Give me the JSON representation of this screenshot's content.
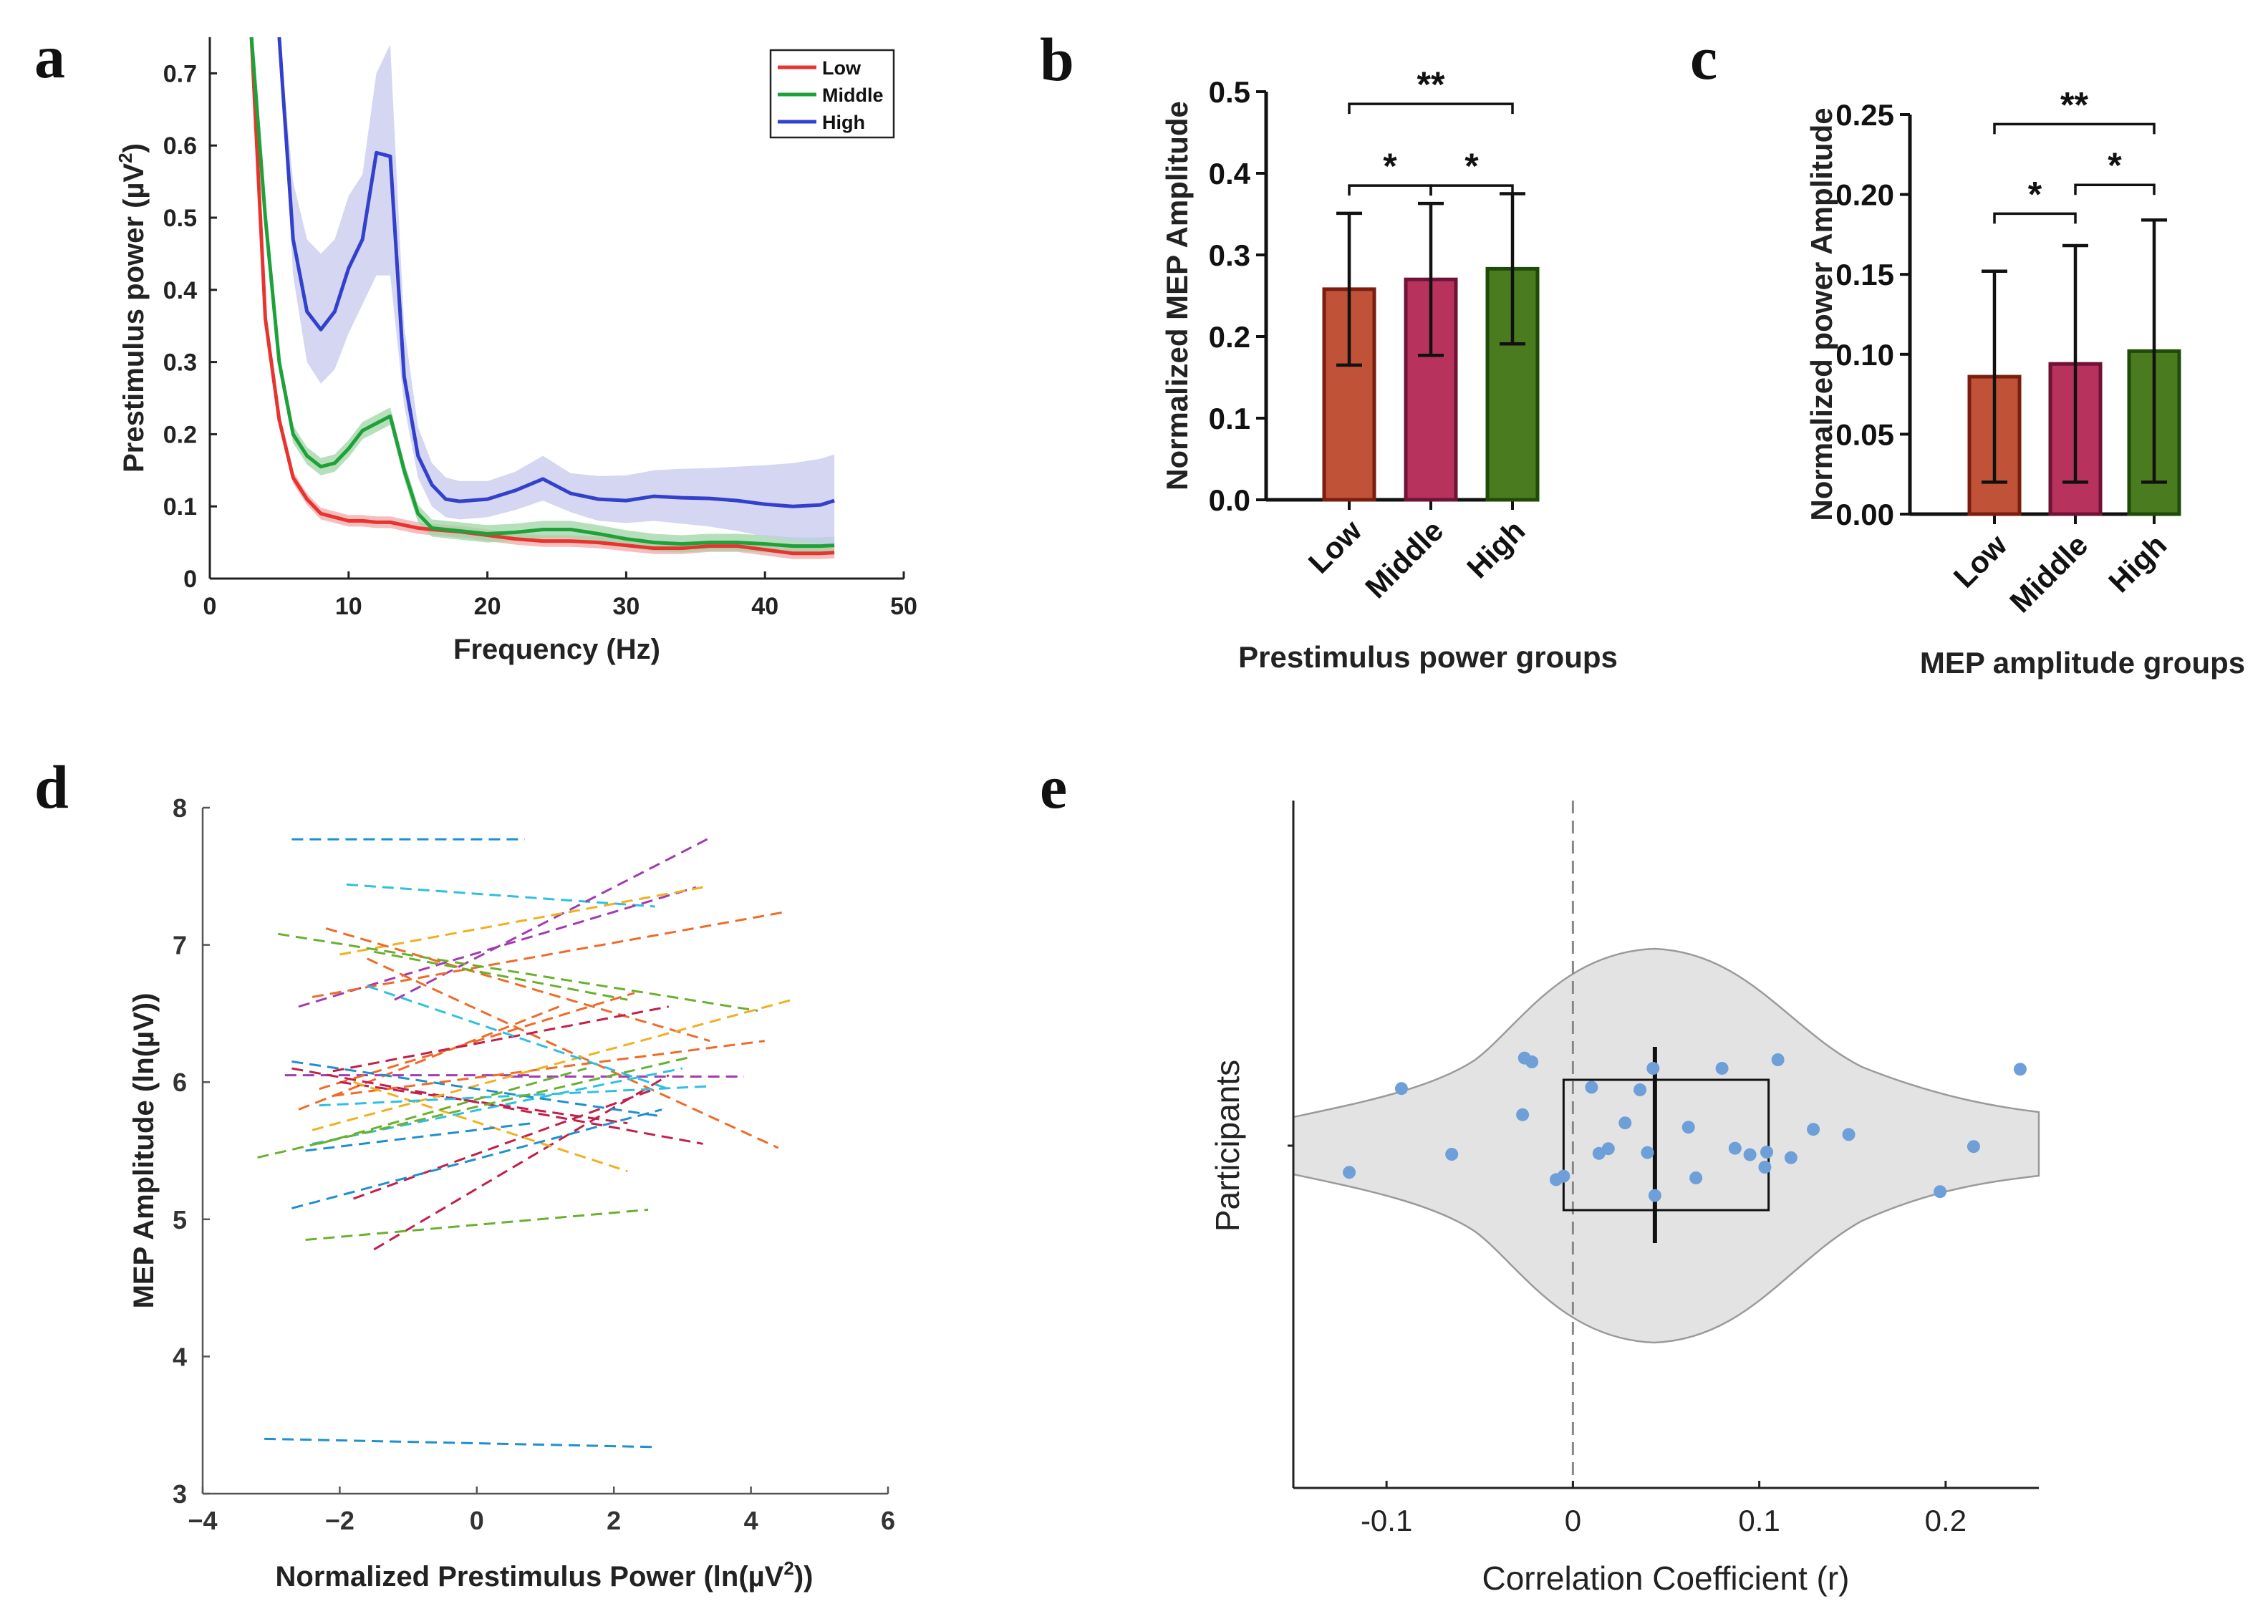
{
  "panels": {
    "a": "a",
    "b": "b",
    "c": "c",
    "d": "d",
    "e": "e"
  },
  "chart_data": [
    {
      "id": "a",
      "type": "line",
      "xlabel": "Frequency (Hz)",
      "ylabel": "Prestimulus power (µV²)",
      "ylabel_base": "Prestimulus power (µV",
      "ylabel_sup": "2",
      "ylabel_end": ")",
      "xlim": [
        0,
        50
      ],
      "ylim": [
        0,
        0.75
      ],
      "xticks": [
        0,
        10,
        20,
        30,
        40,
        50
      ],
      "yticks": [
        0,
        0.1,
        0.2,
        0.3,
        0.4,
        0.5,
        0.6,
        0.7
      ],
      "ytick_labels": [
        "0",
        "0.1",
        "0.2",
        "0.3",
        "0.4",
        "0.5",
        "0.6",
        "0.7"
      ],
      "legend_position": "top-right",
      "series": [
        {
          "name": "Low",
          "color": "#e8342f",
          "band_color": "#f2a8a8",
          "x": [
            3,
            4,
            5,
            6,
            7,
            8,
            9,
            10,
            11,
            12,
            13,
            14,
            15,
            16,
            18,
            20,
            22,
            24,
            26,
            28,
            30,
            32,
            34,
            36,
            38,
            40,
            42,
            44,
            45
          ],
          "y": [
            0.75,
            0.36,
            0.22,
            0.14,
            0.11,
            0.09,
            0.085,
            0.08,
            0.08,
            0.078,
            0.078,
            0.074,
            0.07,
            0.068,
            0.065,
            0.06,
            0.055,
            0.052,
            0.052,
            0.05,
            0.046,
            0.042,
            0.042,
            0.045,
            0.045,
            0.04,
            0.035,
            0.035,
            0.036
          ],
          "band": 0.008
        },
        {
          "name": "Middle",
          "color": "#1fa13a",
          "band_color": "#9fd4a5",
          "x": [
            3,
            4,
            5,
            6,
            7,
            8,
            9,
            10,
            11,
            12,
            13,
            14,
            15,
            16,
            18,
            20,
            22,
            24,
            26,
            28,
            30,
            32,
            34,
            36,
            38,
            40,
            42,
            44,
            45
          ],
          "y": [
            0.75,
            0.5,
            0.3,
            0.2,
            0.17,
            0.155,
            0.16,
            0.18,
            0.205,
            0.215,
            0.225,
            0.15,
            0.09,
            0.07,
            0.066,
            0.062,
            0.064,
            0.068,
            0.068,
            0.062,
            0.055,
            0.05,
            0.048,
            0.05,
            0.05,
            0.048,
            0.045,
            0.045,
            0.046
          ],
          "band": 0.012
        },
        {
          "name": "High",
          "color": "#3340cc",
          "band_color": "#c5c8ee",
          "x": [
            5,
            6,
            7,
            8,
            9,
            10,
            11,
            12,
            13,
            14,
            15,
            16,
            17,
            18,
            20,
            22,
            24,
            26,
            28,
            30,
            32,
            34,
            36,
            38,
            40,
            42,
            44,
            45
          ],
          "y": [
            0.75,
            0.47,
            0.37,
            0.345,
            0.37,
            0.43,
            0.47,
            0.59,
            0.585,
            0.28,
            0.17,
            0.13,
            0.11,
            0.107,
            0.11,
            0.122,
            0.138,
            0.118,
            0.11,
            0.108,
            0.114,
            0.112,
            0.111,
            0.108,
            0.103,
            0.1,
            0.102,
            0.108
          ],
          "band_lo": [
            0.75,
            0.42,
            0.3,
            0.27,
            0.29,
            0.34,
            0.38,
            0.42,
            0.42,
            0.24,
            0.14,
            0.1,
            0.085,
            0.082,
            0.085,
            0.095,
            0.108,
            0.092,
            0.08,
            0.077,
            0.08,
            0.076,
            0.072,
            0.066,
            0.058,
            0.052,
            0.048,
            0.046
          ],
          "band_hi": [
            0.75,
            0.55,
            0.47,
            0.45,
            0.47,
            0.53,
            0.56,
            0.7,
            0.74,
            0.35,
            0.21,
            0.16,
            0.14,
            0.135,
            0.135,
            0.148,
            0.17,
            0.146,
            0.142,
            0.143,
            0.15,
            0.152,
            0.153,
            0.155,
            0.157,
            0.16,
            0.166,
            0.172
          ]
        }
      ]
    },
    {
      "id": "b",
      "type": "bar",
      "xlabel": "Prestimulus  power groups",
      "ylabel": "Normalized MEP Amplitude",
      "categories": [
        "Low",
        "Middle",
        "High"
      ],
      "values": [
        0.258,
        0.27,
        0.283
      ],
      "errors": [
        0.093,
        0.093,
        0.092
      ],
      "ylim": [
        0,
        0.5
      ],
      "yticks": [
        0,
        0.1,
        0.2,
        0.3,
        0.4,
        0.5
      ],
      "ytick_labels": [
        "0.0",
        "0.1",
        "0.2",
        "0.3",
        "0.4",
        "0.5"
      ],
      "bar_colors": [
        "#c05238",
        "#b8325e",
        "#4a7b1e"
      ],
      "bar_edges": [
        "#7a1e10",
        "#6e1236",
        "#1f4a08"
      ],
      "significance": [
        {
          "from": 0,
          "to": 1,
          "label": "*",
          "level": 0.385
        },
        {
          "from": 1,
          "to": 2,
          "label": "*",
          "level": 0.385
        },
        {
          "from": 0,
          "to": 2,
          "label": "**",
          "level": 0.485
        }
      ]
    },
    {
      "id": "c",
      "type": "bar",
      "xlabel": "MEP amplitude groups",
      "ylabel": "Normalized power Amplitude",
      "categories": [
        "Low",
        "Middle",
        "High"
      ],
      "values": [
        0.086,
        0.094,
        0.102
      ],
      "errors": [
        0.066,
        0.074,
        0.082
      ],
      "ylim": [
        0,
        0.25
      ],
      "yticks": [
        0,
        0.05,
        0.1,
        0.15,
        0.2,
        0.25
      ],
      "ytick_labels": [
        "0.00",
        "0.05",
        "0.10",
        "0.15",
        "0.20",
        "0.25"
      ],
      "bar_colors": [
        "#c05238",
        "#b8325e",
        "#4a7b1e"
      ],
      "bar_edges": [
        "#7a1e10",
        "#6e1236",
        "#1f4a08"
      ],
      "significance": [
        {
          "from": 0,
          "to": 1,
          "label": "*",
          "level": 0.188
        },
        {
          "from": 1,
          "to": 2,
          "label": "*",
          "level": 0.206
        },
        {
          "from": 0,
          "to": 2,
          "label": "**",
          "level": 0.244
        }
      ]
    },
    {
      "id": "d",
      "type": "line",
      "xlabel_base": "Normalized Prestimulus Power (ln(µV",
      "xlabel_sup": "2",
      "xlabel_end": "))",
      "ylabel": "MEP Amplitude (ln(µV))",
      "xlim": [
        -4,
        6
      ],
      "ylim": [
        3,
        8
      ],
      "xticks": [
        -4,
        -2,
        0,
        2,
        4,
        6
      ],
      "xtick_labels": [
        "−4",
        "−2",
        "0",
        "2",
        "4",
        "6"
      ],
      "yticks": [
        3,
        4,
        5,
        6,
        7,
        8
      ],
      "ytick_labels": [
        "3",
        "4",
        "5",
        "6",
        "7",
        "8"
      ],
      "lines": [
        {
          "x": [
            -2.7,
            0.7
          ],
          "y": [
            7.77,
            7.77
          ],
          "color": "#1f8fd0"
        },
        {
          "x": [
            -3.1,
            2.6
          ],
          "y": [
            3.4,
            3.34
          ],
          "color": "#1f8fd0"
        },
        {
          "x": [
            -1.9,
            2.6
          ],
          "y": [
            7.44,
            7.28
          ],
          "color": "#2fc0e0"
        },
        {
          "x": [
            -1.2,
            3.4
          ],
          "y": [
            6.6,
            7.78
          ],
          "color": "#a03cb0"
        },
        {
          "x": [
            -2.6,
            3.2
          ],
          "y": [
            6.55,
            7.42
          ],
          "color": "#a03cb0"
        },
        {
          "x": [
            -2.8,
            0.8
          ],
          "y": [
            6.05,
            6.05
          ],
          "color": "#a03cb0"
        },
        {
          "x": [
            0.5,
            3.9
          ],
          "y": [
            6.04,
            6.04
          ],
          "color": "#a03cb0"
        },
        {
          "x": [
            -2.0,
            3.3
          ],
          "y": [
            6.93,
            7.42
          ],
          "color": "#f0b020"
        },
        {
          "x": [
            -2.4,
            4.5
          ],
          "y": [
            6.62,
            7.24
          ],
          "color": "#f06a28"
        },
        {
          "x": [
            -2.9,
            4.1
          ],
          "y": [
            7.08,
            6.52
          ],
          "color": "#6ab030"
        },
        {
          "x": [
            -2.2,
            3.4
          ],
          "y": [
            7.12,
            6.3
          ],
          "color": "#f06a28"
        },
        {
          "x": [
            -2.3,
            2.3
          ],
          "y": [
            5.95,
            6.65
          ],
          "color": "#f06a28"
        },
        {
          "x": [
            -2.1,
            4.2
          ],
          "y": [
            5.9,
            6.3
          ],
          "color": "#f06a28"
        },
        {
          "x": [
            -1.6,
            4.4
          ],
          "y": [
            6.9,
            5.52
          ],
          "color": "#f06a28"
        },
        {
          "x": [
            -2.6,
            1.2
          ],
          "y": [
            5.8,
            6.55
          ],
          "color": "#f06a28"
        },
        {
          "x": [
            -2.1,
            2.8
          ],
          "y": [
            6.08,
            6.55
          ],
          "color": "#c41e4a"
        },
        {
          "x": [
            -1.5,
            2.8
          ],
          "y": [
            4.78,
            6.05
          ],
          "color": "#c41e4a"
        },
        {
          "x": [
            -2.7,
            3.3
          ],
          "y": [
            6.1,
            5.55
          ],
          "color": "#c41e4a"
        },
        {
          "x": [
            -1.8,
            2.6
          ],
          "y": [
            5.15,
            5.95
          ],
          "color": "#c41e4a"
        },
        {
          "x": [
            -2.0,
            2.2
          ],
          "y": [
            6.0,
            5.7
          ],
          "color": "#c41e4a"
        },
        {
          "x": [
            -2.4,
            4.6
          ],
          "y": [
            5.65,
            6.6
          ],
          "color": "#f0b020"
        },
        {
          "x": [
            -1.8,
            2.2
          ],
          "y": [
            6.0,
            5.35
          ],
          "color": "#f0b020"
        },
        {
          "x": [
            -2.3,
            3.4
          ],
          "y": [
            5.83,
            5.97
          ],
          "color": "#2fc0e0"
        },
        {
          "x": [
            -1.6,
            2.8
          ],
          "y": [
            6.7,
            5.95
          ],
          "color": "#2fc0e0"
        },
        {
          "x": [
            -2.4,
            3.0
          ],
          "y": [
            5.55,
            6.1
          ],
          "color": "#2fc0e0"
        },
        {
          "x": [
            -2.7,
            2.7
          ],
          "y": [
            5.08,
            5.8
          ],
          "color": "#1f8fd0"
        },
        {
          "x": [
            -2.7,
            2.7
          ],
          "y": [
            6.15,
            5.75
          ],
          "color": "#1f8fd0"
        },
        {
          "x": [
            -2.5,
            0.8
          ],
          "y": [
            5.5,
            5.7
          ],
          "color": "#1f8fd0"
        },
        {
          "x": [
            -3.2,
            3.1
          ],
          "y": [
            5.45,
            6.18
          ],
          "color": "#6ab030"
        },
        {
          "x": [
            -2.5,
            2.5
          ],
          "y": [
            4.85,
            5.07
          ],
          "color": "#6ab030"
        },
        {
          "x": [
            -2.3,
            1.6
          ],
          "y": [
            5.55,
            6.1
          ],
          "color": "#6ab030"
        },
        {
          "x": [
            -1.5,
            2.2
          ],
          "y": [
            6.95,
            6.6
          ],
          "color": "#6ab030"
        }
      ]
    },
    {
      "id": "e",
      "type": "scatter",
      "xlabel": "Correlation Coefficient (r)",
      "ylabel": "Participants",
      "xlim": [
        -0.15,
        0.25
      ],
      "xticks": [
        -0.1,
        0,
        0.1,
        0.2
      ],
      "xtick_labels": [
        "-0.1",
        "0",
        "0.1",
        "0.2"
      ],
      "point_color": "#6f9fd8",
      "violin_color": "#e3e3e3",
      "box": {
        "q1": -0.005,
        "q3": 0.105,
        "median": 0.044
      },
      "points": [
        {
          "r": -0.12,
          "j": 0.62
        },
        {
          "r": -0.092,
          "j": -1.33
        },
        {
          "r": -0.065,
          "j": 0.2
        },
        {
          "r": -0.027,
          "j": -0.72
        },
        {
          "r": -0.026,
          "j": -2.04
        },
        {
          "r": -0.022,
          "j": -1.95
        },
        {
          "r": -0.009,
          "j": 0.79
        },
        {
          "r": -0.005,
          "j": 0.71
        },
        {
          "r": 0.01,
          "j": -1.36
        },
        {
          "r": 0.014,
          "j": 0.18
        },
        {
          "r": 0.019,
          "j": 0.07
        },
        {
          "r": 0.028,
          "j": -0.53
        },
        {
          "r": 0.036,
          "j": -1.3
        },
        {
          "r": 0.04,
          "j": 0.16
        },
        {
          "r": 0.043,
          "j": -1.8
        },
        {
          "r": 0.044,
          "j": 1.16
        },
        {
          "r": 0.062,
          "j": -0.43
        },
        {
          "r": 0.066,
          "j": 0.75
        },
        {
          "r": 0.08,
          "j": -1.8
        },
        {
          "r": 0.087,
          "j": 0.06
        },
        {
          "r": 0.095,
          "j": 0.21
        },
        {
          "r": 0.103,
          "j": 0.5
        },
        {
          "r": 0.104,
          "j": 0.15
        },
        {
          "r": 0.11,
          "j": -2.0
        },
        {
          "r": 0.117,
          "j": 0.28
        },
        {
          "r": 0.129,
          "j": -0.38
        },
        {
          "r": 0.148,
          "j": -0.26
        },
        {
          "r": 0.197,
          "j": 1.07
        },
        {
          "r": 0.215,
          "j": 0.02
        },
        {
          "r": 0.24,
          "j": -1.78
        }
      ]
    }
  ]
}
